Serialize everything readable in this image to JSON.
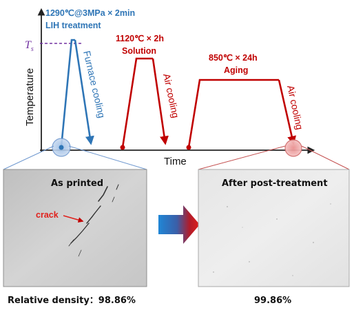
{
  "axes": {
    "ylabel": "Temperature",
    "xlabel": "Time",
    "threshold_symbol": "T",
    "threshold_subscript": "s"
  },
  "stages": {
    "lih": {
      "line1": "1290℃@3MPa × 2min",
      "line2": "LIH treatment",
      "cooling": "Furnace cooling"
    },
    "solution": {
      "line1": "1120℃ × 2h",
      "line2": "Solution",
      "cooling": "Air cooling"
    },
    "aging": {
      "line1": "850℃ × 24h",
      "line2": "Aging",
      "cooling": "Air cooling"
    }
  },
  "panels": {
    "left_title": "As printed",
    "left_annotation": "crack",
    "right_title": "After post-treatment"
  },
  "footer": {
    "left": "Relative density：98.86%",
    "right": "99.86%"
  },
  "colors": {
    "blue": "#2e75b6",
    "red": "#c00000",
    "purple": "#7030a0",
    "arrow_blue": "#1f86d6",
    "arrow_red": "#e0201b"
  }
}
